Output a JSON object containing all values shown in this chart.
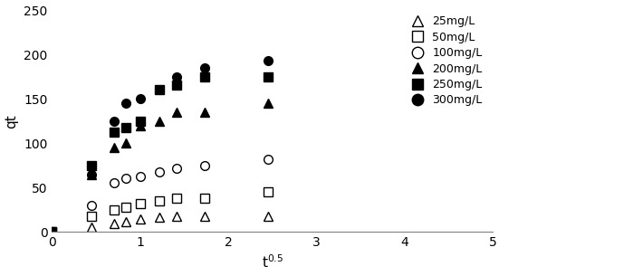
{
  "x_25": [
    0.0,
    0.45,
    0.71,
    0.84,
    1.0,
    1.22,
    1.41,
    1.73,
    2.45
  ],
  "y_25": [
    0,
    5,
    10,
    12,
    15,
    17,
    18,
    18,
    18
  ],
  "x_50": [
    0.0,
    0.45,
    0.71,
    0.84,
    1.0,
    1.22,
    1.41,
    1.73,
    2.45
  ],
  "y_50": [
    0,
    18,
    25,
    28,
    32,
    35,
    38,
    38,
    45
  ],
  "x_100": [
    0.0,
    0.45,
    0.71,
    0.84,
    1.0,
    1.22,
    1.41,
    1.73,
    2.45
  ],
  "y_100": [
    0,
    30,
    55,
    60,
    63,
    68,
    72,
    75,
    82
  ],
  "x_200": [
    0.0,
    0.45,
    0.71,
    0.84,
    1.0,
    1.22,
    1.41,
    1.73,
    2.45
  ],
  "y_200": [
    0,
    65,
    95,
    100,
    120,
    125,
    135,
    135,
    145
  ],
  "x_250": [
    0.0,
    0.45,
    0.71,
    0.84,
    1.0,
    1.22,
    1.41,
    1.73,
    2.45
  ],
  "y_250": [
    0,
    75,
    112,
    118,
    125,
    160,
    165,
    175,
    175
  ],
  "x_300": [
    0.0,
    0.45,
    0.71,
    0.84,
    1.0,
    1.22,
    1.41,
    1.73,
    2.45
  ],
  "y_300": [
    0,
    65,
    125,
    145,
    150,
    160,
    175,
    185,
    193
  ],
  "xlabel": "t$^{0.5}$",
  "ylabel": "qt",
  "xlim": [
    0,
    5
  ],
  "ylim": [
    0,
    250
  ],
  "xticks": [
    0,
    1,
    2,
    3,
    4,
    5
  ],
  "yticks": [
    0,
    50,
    100,
    150,
    200,
    250
  ],
  "markersize": 7,
  "legend_labels": [
    "25mg/L",
    "50mg/L",
    "100mg/L",
    "200mg/L",
    "250mg/L",
    "300mg/L"
  ]
}
